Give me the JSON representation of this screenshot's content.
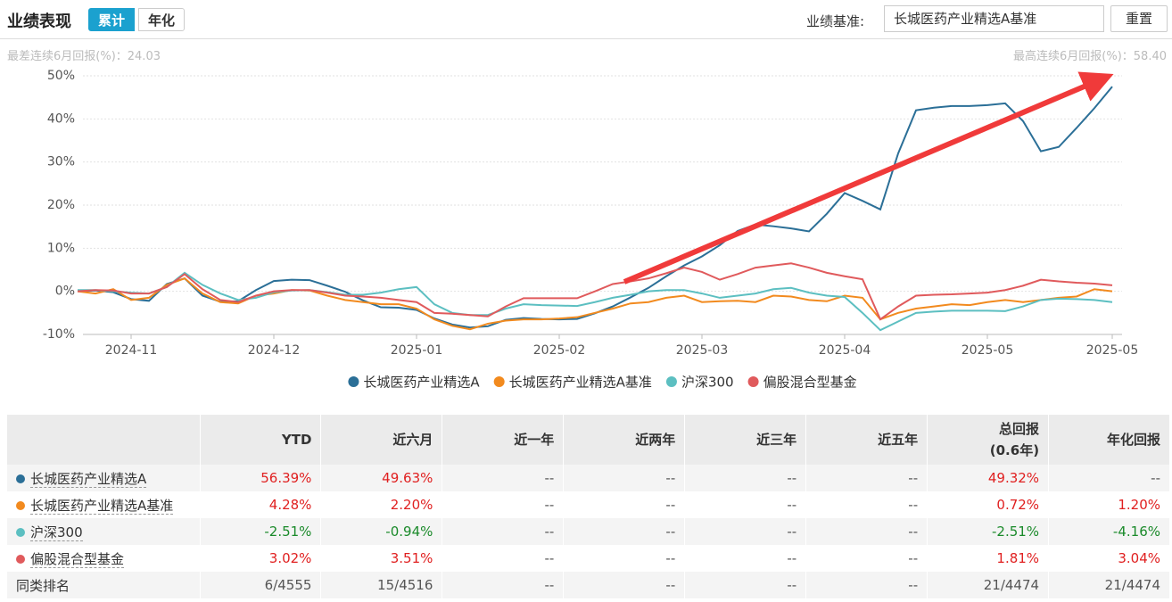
{
  "header": {
    "title": "业绩表现",
    "tabs": [
      "累计",
      "年化"
    ],
    "benchmark_label": "业绩基准:",
    "benchmark_value": "长城医药产业精选A基准",
    "reset": "重置"
  },
  "stats": {
    "worst": "最差连续6月回报(%)：24.03",
    "best": "最高连续6月回报(%)：58.40"
  },
  "chart_data": {
    "type": "line",
    "categories": [
      null,
      null,
      null,
      "2024-11",
      null,
      null,
      null,
      null,
      null,
      null,
      null,
      "2024-12",
      null,
      null,
      null,
      null,
      null,
      null,
      null,
      "2025-01",
      null,
      null,
      null,
      null,
      null,
      null,
      null,
      "2025-02",
      null,
      null,
      null,
      null,
      null,
      null,
      null,
      "2025-03",
      null,
      null,
      null,
      null,
      null,
      null,
      null,
      "2025-04",
      null,
      null,
      null,
      null,
      null,
      null,
      null,
      "2025-05",
      null,
      null,
      null,
      null,
      null,
      null,
      "2025-05"
    ],
    "series": [
      {
        "name": "长城医药产业精选A",
        "color": "#2b6f97",
        "values": [
          0,
          0.2,
          -0.2,
          -1.8,
          -2.2,
          1.7,
          3,
          -1,
          -2.4,
          -2.3,
          0.3,
          2.4,
          2.7,
          2.6,
          1.3,
          -0.1,
          -2.1,
          -3.7,
          -3.8,
          -4.3,
          -6.3,
          -7.7,
          -8.4,
          -8.1,
          -6.6,
          -6.2,
          -6.4,
          -6.5,
          -6.4,
          -5.1,
          -3.5,
          -1.4,
          0.8,
          3.5,
          6,
          8.1,
          10.7,
          14,
          15.5,
          15.1,
          14.6,
          13.9,
          18,
          22.8,
          21,
          19,
          32,
          42,
          42.6,
          43,
          43,
          43.2,
          43.6,
          39.5,
          32.5,
          33.5,
          37.9,
          42.5,
          47.5
        ]
      },
      {
        "name": "长城医药产业精选A基准",
        "color": "#f28a1e",
        "values": [
          0,
          -0.5,
          0.5,
          -2,
          -1.5,
          1.5,
          3,
          -0.5,
          -2.5,
          -2.8,
          -1,
          -0.5,
          0.3,
          0.2,
          -1,
          -2,
          -2.5,
          -3,
          -3,
          -4,
          -6.5,
          -8,
          -8.8,
          -7.5,
          -6.8,
          -6.5,
          -6.5,
          -6.3,
          -6,
          -5,
          -4,
          -2.8,
          -2.5,
          -1.5,
          -1,
          -2.5,
          -2.3,
          -2.2,
          -2.5,
          -1,
          -1.2,
          -2,
          -2.3,
          -1,
          -1.5,
          -6.5,
          -5,
          -4,
          -3.5,
          -3,
          -3.2,
          -2.5,
          -2,
          -2.5,
          -2,
          -1.5,
          -1.2,
          0.5,
          0
        ]
      },
      {
        "name": "沪深300",
        "color": "#5cbfc1",
        "values": [
          0.3,
          0.3,
          0,
          -0.3,
          -0.5,
          1,
          4.3,
          1.5,
          -0.5,
          -2,
          -1.5,
          -0.2,
          0.2,
          0.3,
          -0.2,
          -0.8,
          -0.8,
          -0.3,
          0.5,
          1,
          -3,
          -5,
          -5.5,
          -5.5,
          -4,
          -3,
          -3.2,
          -3.3,
          -3.4,
          -2.5,
          -1.5,
          -0.8,
          0,
          0.3,
          0.3,
          -0.5,
          -1.5,
          -1,
          -0.5,
          0.5,
          0.8,
          -0.3,
          -1,
          -1.3,
          -5,
          -9,
          -7,
          -5,
          -4.7,
          -4.5,
          -4.5,
          -4.5,
          -4.6,
          -3.5,
          -2,
          -1.7,
          -1.8,
          -2,
          -2.5
        ]
      },
      {
        "name": "偏股混合型基金",
        "color": "#e05a5c",
        "values": [
          0,
          0.3,
          0.2,
          -0.5,
          -0.5,
          1,
          4,
          0.5,
          -2,
          -2.5,
          -1,
          0,
          0.3,
          0.3,
          -0.3,
          -1,
          -1.2,
          -1.5,
          -2,
          -2.5,
          -5,
          -5.2,
          -5.5,
          -5.8,
          -3.5,
          -1.6,
          -1.6,
          -1.6,
          -1.6,
          0,
          1.7,
          2.3,
          3,
          4.2,
          5.5,
          4.5,
          2.7,
          4,
          5.5,
          6,
          6.5,
          5.5,
          4.3,
          3.5,
          2.8,
          -6.5,
          -3.5,
          -1,
          -0.8,
          -0.7,
          -0.5,
          -0.3,
          0.3,
          1.3,
          2.7,
          2.3,
          2,
          1.8,
          1.4
        ]
      }
    ],
    "ylim": [
      -10,
      50
    ],
    "yticks": [
      {
        "value": -10,
        "label": "-10%"
      },
      {
        "value": 0,
        "label": "0%"
      },
      {
        "value": 10,
        "label": "10%"
      },
      {
        "value": 20,
        "label": "20%"
      },
      {
        "value": 30,
        "label": "30%"
      },
      {
        "value": 40,
        "label": "40%"
      },
      {
        "value": 50,
        "label": "50%"
      }
    ],
    "grid": true,
    "legend": "bottom"
  },
  "table": {
    "columns": [
      [
        "YTD"
      ],
      [
        "近六月"
      ],
      [
        "近一年"
      ],
      [
        "近两年"
      ],
      [
        "近三年"
      ],
      [
        "近五年"
      ],
      [
        "总回报",
        "(0.6年)"
      ],
      [
        "年化回报"
      ]
    ],
    "rows": [
      {
        "name": "长城医药产业精选A",
        "cells": [
          "56.39%",
          "49.63%",
          "--",
          "--",
          "--",
          "--",
          "49.32%",
          "--"
        ]
      },
      {
        "name": "长城医药产业精选A基准",
        "cells": [
          "4.28%",
          "2.20%",
          "--",
          "--",
          "--",
          "--",
          "0.72%",
          "1.20%"
        ]
      },
      {
        "name": "沪深300",
        "cells": [
          "-2.51%",
          "-0.94%",
          "--",
          "--",
          "--",
          "--",
          "-2.51%",
          "-4.16%"
        ]
      },
      {
        "name": "偏股混合型基金",
        "cells": [
          "3.02%",
          "3.51%",
          "--",
          "--",
          "--",
          "--",
          "1.81%",
          "3.04%"
        ]
      },
      {
        "name": "同类排名",
        "cells": [
          "6/4555",
          "15/4516",
          "--",
          "--",
          "--",
          "--",
          "21/4474",
          "21/4474"
        ]
      }
    ]
  }
}
